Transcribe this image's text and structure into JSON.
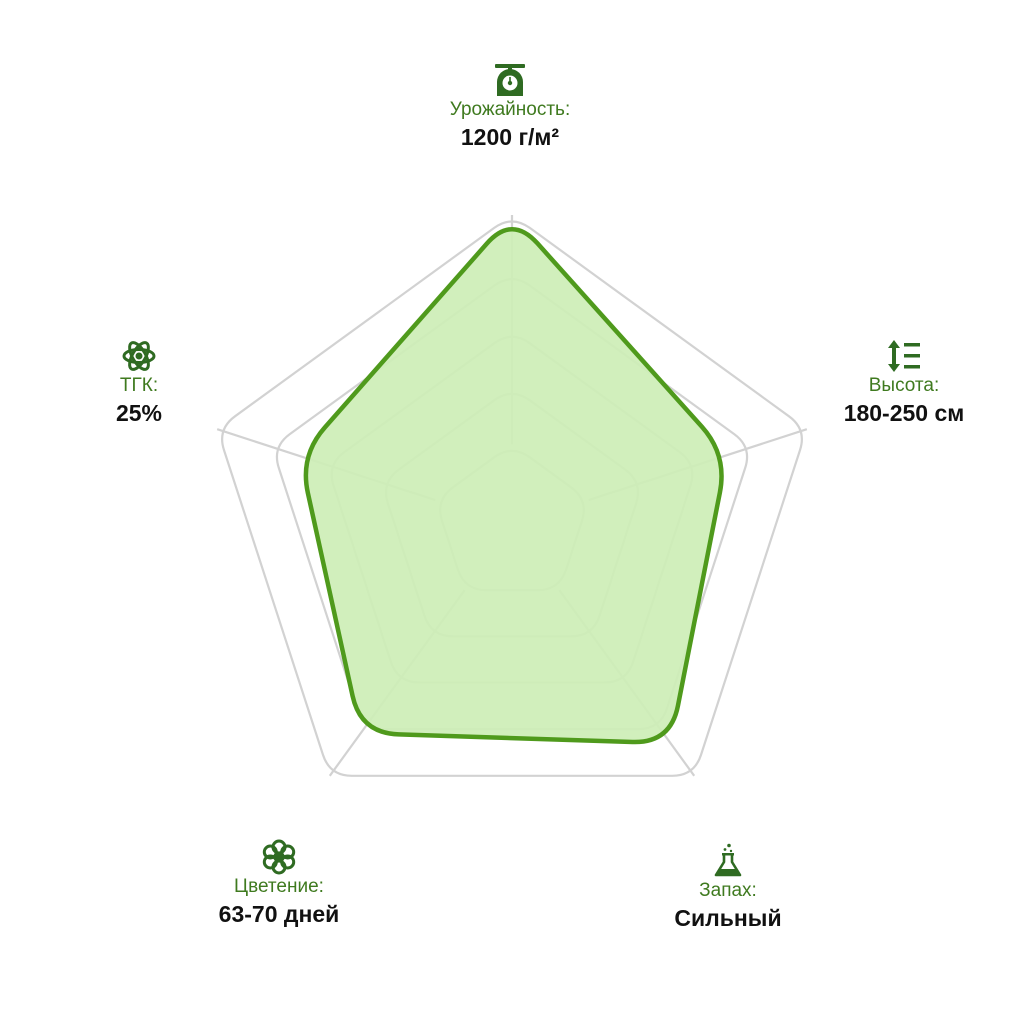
{
  "chart_data": {
    "type": "radar",
    "axes": [
      {
        "label": "Урожайность:",
        "value_text": "1200 г/м²",
        "icon": "scale-icon",
        "value": 1.0
      },
      {
        "label": "Высота:",
        "value_text": "180-250 см",
        "icon": "height-icon",
        "value": 0.73
      },
      {
        "label": "Запах:",
        "value_text": "Сильный",
        "icon": "flask-icon",
        "value": 0.87
      },
      {
        "label": "Цветение:",
        "value_text": "63-70 дней",
        "icon": "flower-icon",
        "value": 0.83
      },
      {
        "label": "ТГК:",
        "value_text": "25%",
        "icon": "atom-icon",
        "value": 0.72
      }
    ],
    "levels": 5,
    "range": [
      0,
      1
    ],
    "colors": {
      "fill": "#cdeeb6",
      "stroke": "#4f9a1c",
      "grid": "#d2d2d2",
      "label": "#3f7a1f",
      "value": "#111111",
      "icon": "#2f6b22"
    }
  }
}
